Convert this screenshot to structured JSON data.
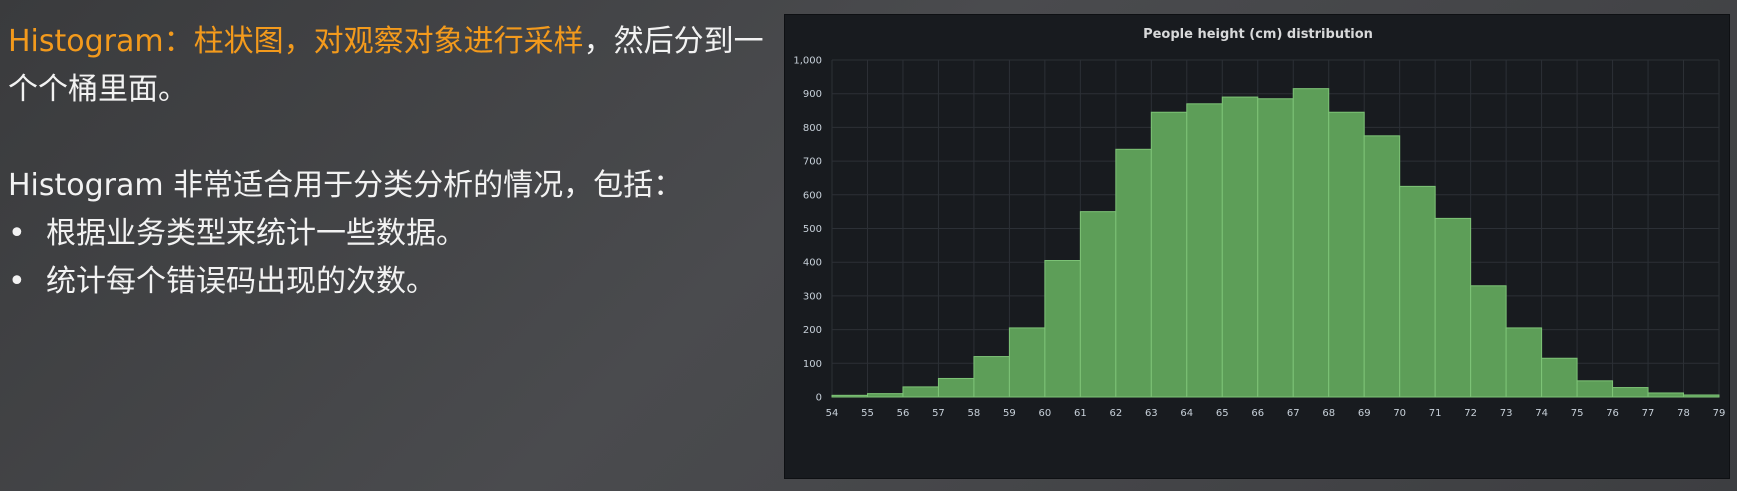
{
  "slide": {
    "intro_highlight": "Histogram：柱状图，对观察对象进行采样",
    "intro_rest": "，然后分到一个个桶里面。",
    "usage": "Histogram 非常适合用于分类分析的情况，包括：",
    "bullets": [
      "根据业务类型来统计一些数据。",
      "统计每个错误码出现的次数。"
    ]
  },
  "colors": {
    "accent": "#f39a1c",
    "bar_fill": "#5d9e58",
    "bar_edge": "#7ec477",
    "panel_bg": "#181b1f",
    "grid": "#2c3036"
  },
  "chart_data": {
    "type": "bar",
    "title": "People height (cm) distribution",
    "xlim": [
      54,
      79
    ],
    "ylim": [
      0,
      1000
    ],
    "x_ticks": [
      "54",
      "55",
      "56",
      "57",
      "58",
      "59",
      "60",
      "61",
      "62",
      "63",
      "64",
      "65",
      "66",
      "67",
      "68",
      "69",
      "70",
      "71",
      "72",
      "73",
      "74",
      "75",
      "76",
      "77",
      "78",
      "79"
    ],
    "y_ticks": [
      "0",
      "100",
      "200",
      "300",
      "400",
      "500",
      "600",
      "700",
      "800",
      "900",
      "1,000"
    ],
    "bins": [
      {
        "start": 54,
        "end": 55,
        "value": 5
      },
      {
        "start": 55,
        "end": 56,
        "value": 10
      },
      {
        "start": 56,
        "end": 57,
        "value": 30
      },
      {
        "start": 57,
        "end": 58,
        "value": 55
      },
      {
        "start": 58,
        "end": 59,
        "value": 120
      },
      {
        "start": 59,
        "end": 60,
        "value": 205
      },
      {
        "start": 60,
        "end": 61,
        "value": 405
      },
      {
        "start": 61,
        "end": 62,
        "value": 550
      },
      {
        "start": 62,
        "end": 63,
        "value": 735
      },
      {
        "start": 63,
        "end": 64,
        "value": 845
      },
      {
        "start": 64,
        "end": 65,
        "value": 870
      },
      {
        "start": 65,
        "end": 66,
        "value": 890
      },
      {
        "start": 66,
        "end": 67,
        "value": 885
      },
      {
        "start": 67,
        "end": 68,
        "value": 915
      },
      {
        "start": 68,
        "end": 69,
        "value": 845
      },
      {
        "start": 69,
        "end": 70,
        "value": 775
      },
      {
        "start": 70,
        "end": 71,
        "value": 625
      },
      {
        "start": 71,
        "end": 72,
        "value": 530
      },
      {
        "start": 72,
        "end": 73,
        "value": 330
      },
      {
        "start": 73,
        "end": 74,
        "value": 205
      },
      {
        "start": 74,
        "end": 75,
        "value": 115
      },
      {
        "start": 75,
        "end": 76,
        "value": 48
      },
      {
        "start": 76,
        "end": 77,
        "value": 28
      },
      {
        "start": 77,
        "end": 78,
        "value": 12
      },
      {
        "start": 78,
        "end": 79,
        "value": 6
      }
    ],
    "grid": true,
    "legend": "none"
  }
}
